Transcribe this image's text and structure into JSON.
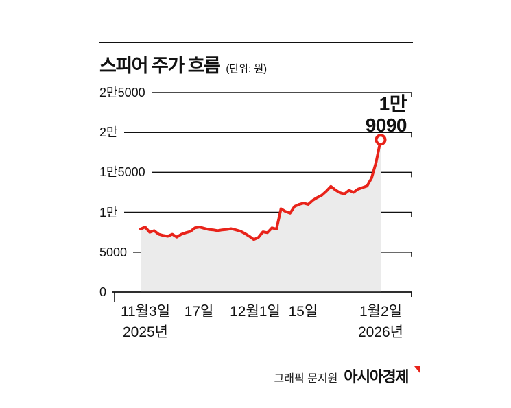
{
  "header": {
    "title": "스피어 주가 흐름",
    "unit": "(단위: 원)"
  },
  "chart_data": {
    "type": "line",
    "title": "스피어 주가 흐름",
    "unit_label": "(단위: 원)",
    "ylabel": "원",
    "ylim": [
      0,
      25000
    ],
    "grid": "horizontal",
    "area_fill": "#ebebeb",
    "yticks": [
      {
        "label": "2만5000",
        "value": 25000
      },
      {
        "label": "2만",
        "value": 20000
      },
      {
        "label": "1만5000",
        "value": 15000
      },
      {
        "label": "1만",
        "value": 10000
      },
      {
        "label": "5000",
        "value": 5000
      },
      {
        "label": "0",
        "value": 0
      }
    ],
    "xticks": [
      {
        "label": "11월3일",
        "sub": "2025년",
        "pos": 0.02
      },
      {
        "label": "17일",
        "sub": "",
        "pos": 0.243
      },
      {
        "label": "12월1일",
        "sub": "",
        "pos": 0.477
      },
      {
        "label": "15일",
        "sub": "",
        "pos": 0.677
      },
      {
        "label": "1월2일",
        "sub": "2026년",
        "pos": 1.0
      }
    ],
    "series": [
      {
        "name": "스피어 주가",
        "color": "#e8231a",
        "values": [
          7900,
          8150,
          7500,
          7700,
          7250,
          7100,
          7000,
          7250,
          6900,
          7250,
          7450,
          7600,
          8050,
          8150,
          8000,
          7850,
          7800,
          7700,
          7800,
          7850,
          7950,
          7800,
          7650,
          7350,
          7000,
          6600,
          6850,
          7550,
          7450,
          8050,
          7900,
          10450,
          10100,
          9900,
          10750,
          11000,
          11150,
          11000,
          11500,
          11850,
          12150,
          12650,
          13250,
          12800,
          12450,
          12300,
          12750,
          12500,
          12900,
          13100,
          13300,
          14300,
          16300,
          19090
        ]
      }
    ],
    "annotation": {
      "line1": "1만",
      "line2": "9090",
      "value": 19090
    }
  },
  "footer": {
    "credit": "그래픽 문지원",
    "brand": "아시아경제"
  },
  "colors": {
    "line_red": "#e8231a",
    "area_gray": "#ebebeb",
    "axis_black": "#111111",
    "brand_red": "#e8231a"
  }
}
